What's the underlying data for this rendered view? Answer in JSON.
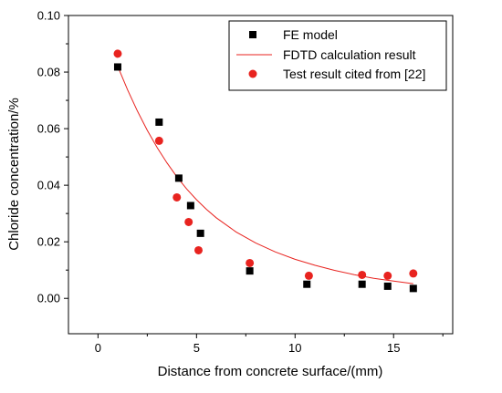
{
  "chart_data": {
    "type": "scatter",
    "xlabel": "Distance from concrete surface/(mm)",
    "ylabel": "Chloride concentration/%",
    "xlim": [
      -1.5,
      18
    ],
    "ylim": [
      -0.0125,
      0.1
    ],
    "x_ticks": [
      "0",
      "5",
      "10",
      "15"
    ],
    "y_ticks": [
      "0.00",
      "0.02",
      "0.04",
      "0.06",
      "0.08",
      "0.10"
    ],
    "legend_position": "top-right",
    "colors": {
      "fe_model": "#000000",
      "fdtd": "#e8231f",
      "test": "#e8231f"
    },
    "series": [
      {
        "name": "FE model",
        "kind": "square-marker",
        "x": [
          1.0,
          3.1,
          4.1,
          4.7,
          5.2,
          7.7,
          10.6,
          13.4,
          14.7,
          16.0
        ],
        "y": [
          0.0818,
          0.0623,
          0.0425,
          0.0328,
          0.023,
          0.0097,
          0.005,
          0.005,
          0.0043,
          0.0035
        ]
      },
      {
        "name": "FDTD calculation result",
        "kind": "line",
        "x": [
          1.0,
          1.5,
          2.0,
          2.5,
          3.0,
          3.5,
          4.0,
          4.5,
          5.0,
          5.5,
          6.0,
          7.0,
          8.0,
          9.0,
          10.0,
          11.0,
          12.0,
          13.0,
          14.0,
          15.0,
          16.0
        ],
        "y": [
          0.082,
          0.0737,
          0.0662,
          0.0594,
          0.0533,
          0.0479,
          0.043,
          0.0387,
          0.0349,
          0.0315,
          0.0285,
          0.0235,
          0.0196,
          0.0164,
          0.0138,
          0.0117,
          0.0099,
          0.0084,
          0.0071,
          0.0061,
          0.0052
        ]
      },
      {
        "name": "Test result cited from [22]",
        "kind": "circle-marker",
        "x": [
          1.0,
          3.1,
          4.0,
          4.6,
          5.1,
          7.7,
          10.7,
          13.4,
          14.7,
          16.0
        ],
        "y": [
          0.0865,
          0.0557,
          0.0357,
          0.027,
          0.017,
          0.0125,
          0.008,
          0.0083,
          0.008,
          0.0088
        ]
      }
    ]
  }
}
